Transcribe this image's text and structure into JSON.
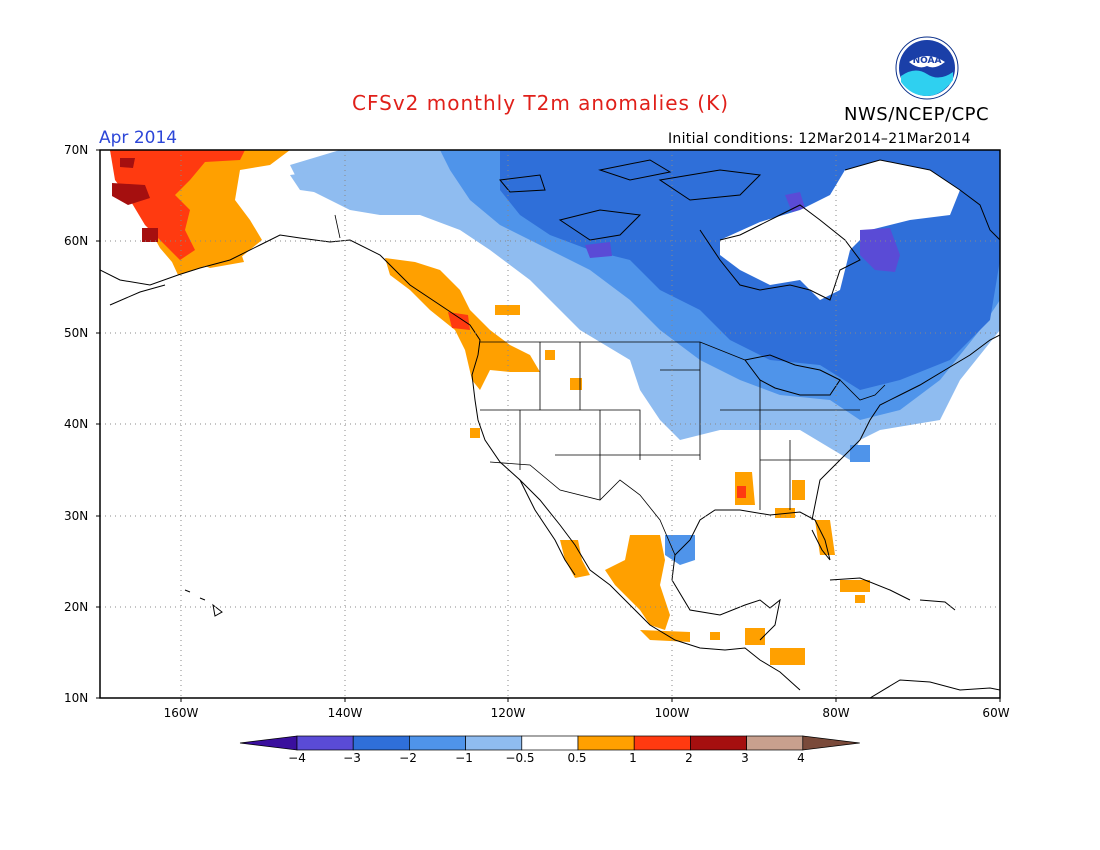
{
  "title": "CFSv2 monthly T2m anomalies (K)",
  "agency": "NWS/NCEP/CPC",
  "logo_text": "NOAA",
  "period": "Apr 2014",
  "initial_conditions": "Initial conditions: 12Mar2014–21Mar2014",
  "lat_labels": [
    "70N",
    "60N",
    "50N",
    "40N",
    "30N",
    "20N",
    "10N"
  ],
  "lon_labels": [
    "160W",
    "140W",
    "120W",
    "100W",
    "80W",
    "60W"
  ],
  "colorbar": {
    "labels": [
      "−4",
      "−3",
      "−2",
      "−1",
      "−0.5",
      "0.5",
      "1",
      "2",
      "3",
      "4"
    ],
    "colors": [
      "#3a0f9e",
      "#5a4bd6",
      "#2f6fd9",
      "#4f94ea",
      "#8fbcf0",
      "#ffffff",
      "#ffa000",
      "#ff3a10",
      "#a50f0f",
      "#c8a08e",
      "#7a4a3a"
    ]
  }
}
